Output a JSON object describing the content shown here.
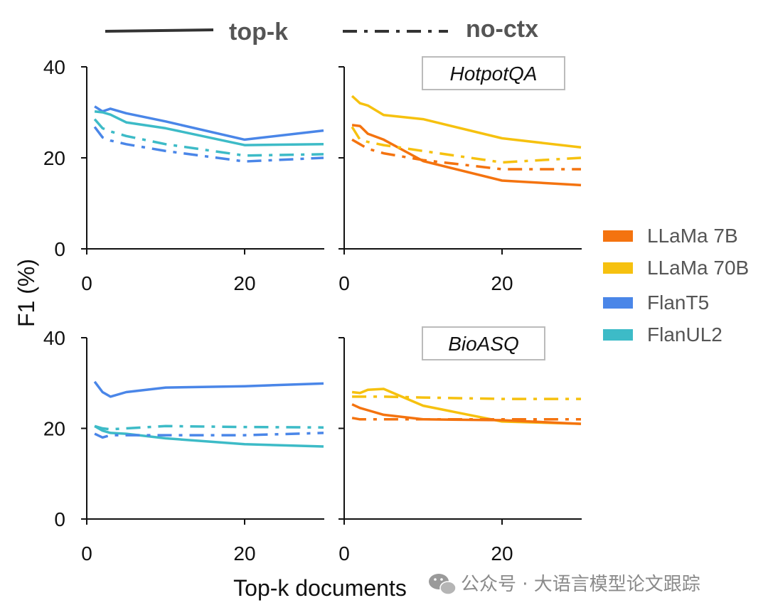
{
  "chart_data": {
    "type": "line",
    "ylabel": "F1 (%)",
    "xlabel": "Top-k documents",
    "xlim": [
      0,
      30
    ],
    "ylim": [
      0,
      40
    ],
    "xticks": [
      0,
      20
    ],
    "yticks": [
      0,
      20,
      40
    ],
    "line_styles": [
      {
        "label": "top-k",
        "dash": "solid"
      },
      {
        "label": "no-ctx",
        "dash": "dashdot"
      }
    ],
    "legend": {
      "placement": "right",
      "entries": [
        {
          "name": "LLaMa 7B",
          "color": "#F4730F"
        },
        {
          "name": "LLaMa 70B",
          "color": "#F6C10F"
        },
        {
          "name": "FlanT5",
          "color": "#4A86E8"
        },
        {
          "name": "FlanUL2",
          "color": "#3DBBC7"
        }
      ]
    },
    "panels": [
      {
        "title": "",
        "series": [
          {
            "model": "FlanT5",
            "style": "top-k",
            "x": [
              1,
              2,
              3,
              5,
              10,
              20,
              30
            ],
            "y": [
              31.3,
              30.2,
              30.8,
              29.8,
              28.0,
              24.0,
              26.0
            ]
          },
          {
            "model": "FlanUL2",
            "style": "top-k",
            "x": [
              1,
              2,
              3,
              5,
              10,
              20,
              30
            ],
            "y": [
              30.2,
              30.0,
              29.5,
              27.8,
              26.5,
              22.8,
              23.0
            ]
          },
          {
            "model": "FlanT5",
            "style": "no-ctx",
            "x": [
              1,
              2,
              3,
              5,
              10,
              20,
              30
            ],
            "y": [
              26.8,
              24.5,
              23.8,
              23.0,
              21.5,
              19.2,
              20.0
            ]
          },
          {
            "model": "FlanUL2",
            "style": "no-ctx",
            "x": [
              1,
              2,
              3,
              5,
              10,
              20,
              30
            ],
            "y": [
              28.5,
              26.5,
              25.8,
              24.8,
              23.0,
              20.5,
              20.8
            ]
          }
        ]
      },
      {
        "title": "HotpotQA",
        "series": [
          {
            "model": "LLaMa 70B",
            "style": "top-k",
            "x": [
              1,
              2,
              3,
              5,
              10,
              20,
              30
            ],
            "y": [
              33.6,
              32.0,
              31.5,
              29.4,
              28.5,
              24.3,
              22.3
            ]
          },
          {
            "model": "LLaMa 7B",
            "style": "top-k",
            "x": [
              1,
              2,
              3,
              5,
              10,
              20,
              30
            ],
            "y": [
              27.2,
              27.0,
              25.3,
              24.0,
              19.3,
              15.0,
              14.0
            ]
          },
          {
            "model": "LLaMa 70B",
            "style": "no-ctx",
            "x": [
              1,
              2,
              3,
              5,
              10,
              20,
              30
            ],
            "y": [
              26.8,
              24.0,
              23.5,
              22.8,
              21.5,
              19.0,
              20.0
            ]
          },
          {
            "model": "LLaMa 7B",
            "style": "no-ctx",
            "x": [
              1,
              2,
              3,
              5,
              10,
              20,
              30
            ],
            "y": [
              24.0,
              23.0,
              22.0,
              21.0,
              19.5,
              17.5,
              17.5
            ]
          }
        ]
      },
      {
        "title": "",
        "series": [
          {
            "model": "FlanT5",
            "style": "top-k",
            "x": [
              1,
              2,
              3,
              5,
              10,
              20,
              30
            ],
            "y": [
              30.3,
              28.0,
              27.0,
              28.0,
              29.0,
              29.3,
              29.9
            ]
          },
          {
            "model": "FlanUL2",
            "style": "top-k",
            "x": [
              1,
              2,
              3,
              5,
              10,
              20,
              30
            ],
            "y": [
              20.5,
              19.5,
              19.0,
              18.8,
              17.8,
              16.5,
              16.0
            ]
          },
          {
            "model": "FlanT5",
            "style": "no-ctx",
            "x": [
              1,
              2,
              3,
              5,
              10,
              20,
              30
            ],
            "y": [
              18.8,
              18.0,
              18.5,
              18.5,
              18.5,
              18.5,
              19.0
            ]
          },
          {
            "model": "FlanUL2",
            "style": "no-ctx",
            "x": [
              1,
              2,
              3,
              5,
              10,
              20,
              30
            ],
            "y": [
              20.5,
              20.0,
              19.8,
              20.0,
              20.5,
              20.3,
              20.2
            ]
          }
        ]
      },
      {
        "title": "BioASQ",
        "series": [
          {
            "model": "LLaMa 70B",
            "style": "top-k",
            "x": [
              1,
              2,
              3,
              5,
              10,
              20,
              30
            ],
            "y": [
              28.0,
              27.8,
              28.5,
              28.7,
              25.0,
              21.5,
              21.0
            ]
          },
          {
            "model": "LLaMa 7B",
            "style": "top-k",
            "x": [
              1,
              2,
              3,
              5,
              10,
              20,
              30
            ],
            "y": [
              25.3,
              24.5,
              24.0,
              23.0,
              22.0,
              21.8,
              21.0
            ]
          },
          {
            "model": "LLaMa 70B",
            "style": "no-ctx",
            "x": [
              1,
              2,
              3,
              5,
              10,
              20,
              30
            ],
            "y": [
              27.0,
              27.0,
              27.0,
              27.0,
              26.8,
              26.5,
              26.5
            ]
          },
          {
            "model": "LLaMa 7B",
            "style": "no-ctx",
            "x": [
              1,
              2,
              3,
              5,
              10,
              20,
              30
            ],
            "y": [
              22.3,
              22.0,
              22.0,
              22.0,
              22.0,
              22.0,
              22.0
            ]
          }
        ]
      }
    ]
  },
  "watermark": {
    "text": "公众号 · 大语言模型论文跟踪",
    "icon": "wechat-icon"
  }
}
